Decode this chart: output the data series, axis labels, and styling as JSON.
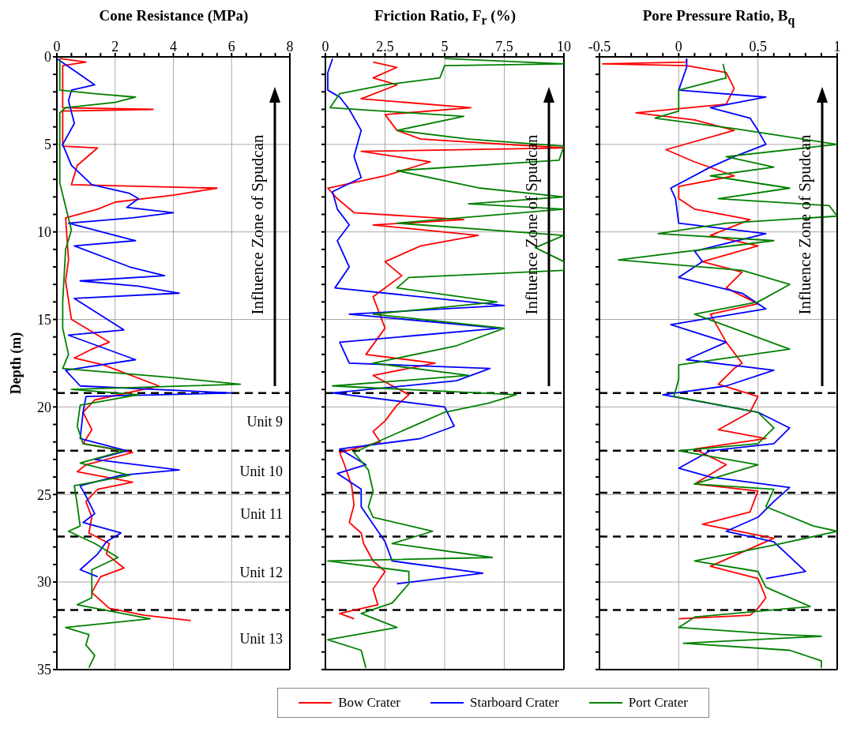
{
  "chart_data": [
    {
      "type": "line",
      "title": "Cone Resistance (MPa)",
      "ylabel": "Depth (m)",
      "grid": true,
      "xlim": [
        0,
        8
      ],
      "xticks": [
        0,
        {
          "value": 0.5,
          "label": null
        },
        {
          "value": 1,
          "label": null
        },
        {
          "value": 1.5,
          "label": null
        },
        2,
        {
          "value": 2.5,
          "label": null
        },
        {
          "value": 3,
          "label": null
        },
        {
          "value": 3.5,
          "label": null
        },
        4,
        {
          "value": 4.5,
          "label": null
        },
        {
          "value": 5,
          "label": null
        },
        {
          "value": 5.5,
          "label": null
        },
        6,
        {
          "value": 6.5,
          "label": null
        },
        {
          "value": 7,
          "label": null
        },
        {
          "value": 7.5,
          "label": null
        },
        8
      ],
      "ylim": [
        35,
        0
      ],
      "yticks": [
        0,
        {
          "value": 1,
          "label": null
        },
        {
          "value": 2,
          "label": null
        },
        {
          "value": 3,
          "label": null
        },
        {
          "value": 4,
          "label": null
        },
        5,
        {
          "value": 6,
          "label": null
        },
        {
          "value": 7,
          "label": null
        },
        {
          "value": 8,
          "label": null
        },
        {
          "value": 9,
          "label": null
        },
        10,
        {
          "value": 11,
          "label": null
        },
        {
          "value": 12,
          "label": null
        },
        {
          "value": 13,
          "label": null
        },
        {
          "value": 14,
          "label": null
        },
        15,
        {
          "value": 16,
          "label": null
        },
        {
          "value": 17,
          "label": null
        },
        {
          "value": 18,
          "label": null
        },
        {
          "value": 19,
          "label": null
        },
        20,
        {
          "value": 21,
          "label": null
        },
        {
          "value": 22,
          "label": null
        },
        {
          "value": 23,
          "label": null
        },
        {
          "value": 24,
          "label": null
        },
        25,
        {
          "value": 26,
          "label": null
        },
        {
          "value": 27,
          "label": null
        },
        {
          "value": 28,
          "label": null
        },
        {
          "value": 29,
          "label": null
        },
        30,
        {
          "value": 31,
          "label": null
        },
        {
          "value": 32,
          "label": null
        },
        {
          "value": 33,
          "label": null
        },
        {
          "value": 34,
          "label": null
        },
        35
      ],
      "series": [
        {
          "name": "Bow Crater",
          "color": "#ff0000",
          "x": [
            0.1,
            1.0,
            0.2,
            0.2,
            3.3,
            0.2,
            0.2,
            1.4,
            0.7,
            0.5,
            5.5,
            4.0,
            2.0,
            1.4,
            0.3,
            0.4,
            0.3,
            0.5,
            1.8,
            1.2,
            0.6,
            1.6,
            3.5,
            1.3,
            0.9,
            1.2,
            0.9,
            2.6,
            1.0,
            0.7,
            2.6,
            1.4,
            1.0,
            1.2,
            1.1,
            1.8,
            1.7,
            2.3,
            1.5,
            1.2,
            1.8,
            3.0,
            4.6
          ],
          "values": [
            0.1,
            0.3,
            0.5,
            2.9,
            3.0,
            3.1,
            5.1,
            5.2,
            6.2,
            7.3,
            7.5,
            7.9,
            8.3,
            8.7,
            9.2,
            11.6,
            12.8,
            15.0,
            16.3,
            16.7,
            17.2,
            17.6,
            18.8,
            19.6,
            20.3,
            21.3,
            22.1,
            22.6,
            23.3,
            23.7,
            24.3,
            24.7,
            25.4,
            26.3,
            27.2,
            27.8,
            28.4,
            29.2,
            29.7,
            30.6,
            31.5,
            31.9,
            32.2
          ]
        },
        {
          "name": "Starboard Crater",
          "color": "#0000ff",
          "x": [
            0.0,
            0.7,
            1.3,
            0.5,
            0.4,
            0.6,
            0.2,
            0.5,
            1.2,
            2.5,
            2.8,
            2.4,
            4.0,
            2.6,
            0.4,
            2.7,
            0.6,
            2.5,
            3.7,
            0.8,
            2.8,
            4.2,
            0.6,
            2.3,
            0.4,
            2.7,
            0.3,
            0.8,
            6.0,
            1.0,
            0.9,
            0.8,
            2.4,
            1.3,
            4.2,
            2.2,
            0.8,
            1.0,
            1.3,
            0.9,
            2.2,
            1.7,
            1.4,
            0.8,
            1.4
          ],
          "values": [
            0.1,
            0.9,
            1.6,
            1.9,
            2.5,
            3.8,
            5.0,
            6.2,
            7.3,
            7.8,
            8.1,
            8.6,
            8.9,
            9.2,
            9.5,
            10.5,
            10.8,
            12.0,
            12.5,
            12.8,
            13.1,
            13.5,
            13.8,
            15.6,
            15.9,
            17.3,
            17.9,
            18.8,
            19.2,
            19.4,
            20.3,
            21.8,
            22.5,
            23.0,
            23.6,
            23.9,
            24.5,
            25.1,
            26.1,
            26.6,
            27.2,
            27.7,
            28.4,
            29.3,
            29.7
          ]
        },
        {
          "name": "Port Crater",
          "color": "#008000",
          "x": [
            0.1,
            0.1,
            1.3,
            2.7,
            2.0,
            0.3,
            0.1,
            0.1,
            0.1,
            0.5,
            0.3,
            0.2,
            0.2,
            0.4,
            0.2,
            3.8,
            6.3,
            0.5,
            2.8,
            0.8,
            0.7,
            0.9,
            2.3,
            0.8,
            2.5,
            0.6,
            0.7,
            0.8,
            0.4,
            1.3,
            2.1,
            1.2,
            1.2,
            0.7,
            3.2,
            0.3,
            1.1,
            1.0,
            1.3,
            1.1
          ],
          "values": [
            0.1,
            1.9,
            2.1,
            2.3,
            2.6,
            2.9,
            3.2,
            5.7,
            7.2,
            9.9,
            11.0,
            14.0,
            15.5,
            17.0,
            17.8,
            18.3,
            18.7,
            19.0,
            19.3,
            19.9,
            21.1,
            22.1,
            22.5,
            23.2,
            23.9,
            24.5,
            25.6,
            26.8,
            27.1,
            27.8,
            28.6,
            29.3,
            30.9,
            31.3,
            32.1,
            32.6,
            33.0,
            33.6,
            34.2,
            34.9
          ]
        }
      ],
      "ref_lines": [
        {
          "axis": "y",
          "value": 19.2,
          "line_style": "dashed",
          "color": "#000000"
        },
        {
          "axis": "y",
          "value": 22.5,
          "line_style": "dashed",
          "color": "#000000"
        },
        {
          "axis": "y",
          "value": 24.9,
          "line_style": "dashed",
          "color": "#000000"
        },
        {
          "axis": "y",
          "value": 27.4,
          "line_style": "dashed",
          "color": "#000000"
        },
        {
          "axis": "y",
          "value": 31.6,
          "line_style": "dashed",
          "color": "#000000"
        }
      ],
      "legend": "bottom",
      "annotations": [
        "Influence Zone of Spudcan",
        "Unit 9",
        "Unit 10",
        "Unit 11",
        "Unit 12",
        "Unit 13"
      ]
    },
    {
      "type": "line",
      "title": "Friction Ratio, F$_{r}$ (%)",
      "grid": true,
      "tick_labels": "x",
      "legend": "bottom",
      "xlim": [
        0,
        10
      ],
      "xticks": [
        0,
        {
          "value": 0.5,
          "label": null
        },
        {
          "value": 1,
          "label": null
        },
        {
          "value": 1.5,
          "label": null
        },
        {
          "value": 2,
          "label": null
        },
        2.5,
        {
          "value": 3,
          "label": null
        },
        {
          "value": 3.5,
          "label": null
        },
        {
          "value": 4,
          "label": null
        },
        {
          "value": 4.5,
          "label": null
        },
        5,
        {
          "value": 5.5,
          "label": null
        },
        {
          "value": 6,
          "label": null
        },
        {
          "value": 6.5,
          "label": null
        },
        {
          "value": 7,
          "label": null
        },
        7.5,
        {
          "value": 8,
          "label": null
        },
        {
          "value": 8.5,
          "label": null
        },
        {
          "value": 9,
          "label": null
        },
        {
          "value": 9.5,
          "label": null
        },
        10
      ],
      "ylim": [
        35,
        0
      ],
      "yticks": [
        0,
        {
          "value": 1,
          "label": null
        },
        {
          "value": 2,
          "label": null
        },
        {
          "value": 3,
          "label": null
        },
        {
          "value": 4,
          "label": null
        },
        5,
        {
          "value": 6,
          "label": null
        },
        {
          "value": 7,
          "label": null
        },
        {
          "value": 8,
          "label": null
        },
        {
          "value": 9,
          "label": null
        },
        10,
        {
          "value": 11,
          "label": null
        },
        {
          "value": 12,
          "label": null
        },
        {
          "value": 13,
          "label": null
        },
        {
          "value": 14,
          "label": null
        },
        15,
        {
          "value": 16,
          "label": null
        },
        {
          "value": 17,
          "label": null
        },
        {
          "value": 18,
          "label": null
        },
        {
          "value": 19,
          "label": null
        },
        20,
        {
          "value": 21,
          "label": null
        },
        {
          "value": 22,
          "label": null
        },
        {
          "value": 23,
          "label": null
        },
        {
          "value": 24,
          "label": null
        },
        25,
        {
          "value": 26,
          "label": null
        },
        {
          "value": 27,
          "label": null
        },
        {
          "value": 28,
          "label": null
        },
        {
          "value": 29,
          "label": null
        },
        30,
        {
          "value": 31,
          "label": null
        },
        {
          "value": 32,
          "label": null
        },
        {
          "value": 33,
          "label": null
        },
        {
          "value": 34,
          "label": null
        },
        35
      ],
      "series": [
        {
          "name": "Bow Crater",
          "color": "#ff0000",
          "x": [
            2.0,
            3.0,
            2.0,
            3.0,
            1.5,
            6.1,
            2.5,
            3.0,
            4.0,
            10.0,
            1.5,
            4.4,
            2.5,
            0.1,
            0.5,
            1.2,
            5.8,
            2.0,
            6.4,
            4.0,
            2.5,
            3.2,
            2.0,
            2.5,
            1.7,
            4.6,
            2.0,
            3.5,
            3.0,
            2.5,
            2.0,
            2.3,
            0.6,
            0.8,
            1.1,
            1.2,
            1.0,
            1.5,
            1.6,
            2.0,
            2.5,
            2.0,
            2.2,
            0.6,
            1.2
          ],
          "values": [
            0.3,
            0.6,
            1.2,
            1.6,
            2.4,
            2.9,
            3.3,
            4.2,
            4.7,
            5.2,
            5.4,
            6.0,
            6.8,
            7.5,
            8.1,
            8.9,
            9.3,
            9.6,
            10.2,
            10.8,
            11.7,
            12.5,
            13.7,
            15.5,
            17.0,
            17.5,
            18.2,
            19.3,
            19.9,
            20.8,
            21.4,
            22.0,
            22.6,
            23.3,
            24.5,
            25.6,
            26.6,
            27.2,
            27.8,
            28.8,
            29.4,
            30.4,
            31.3,
            31.8,
            32.1
          ]
        },
        {
          "name": "Starboard Crater",
          "color": "#0000ff",
          "x": [
            0.3,
            0.1,
            0.1,
            0.6,
            1.0,
            1.5,
            1.2,
            1.5,
            0.3,
            0.5,
            1.0,
            0.5,
            1.0,
            0.4,
            7.5,
            1.0,
            7.3,
            0.6,
            1.0,
            6.9,
            5.5,
            0.3,
            5.0,
            5.4,
            4.0,
            0.6,
            1.7,
            0.5,
            1.5,
            1.5,
            2.1,
            2.5,
            2.8,
            6.6,
            3.0
          ],
          "values": [
            0.1,
            0.9,
            1.9,
            2.3,
            3.0,
            4.2,
            5.7,
            6.9,
            7.7,
            8.7,
            9.6,
            10.5,
            12.0,
            13.2,
            14.2,
            14.7,
            15.5,
            16.3,
            17.5,
            17.8,
            18.5,
            19.2,
            20.0,
            21.1,
            21.8,
            22.4,
            23.3,
            23.8,
            24.7,
            25.7,
            26.9,
            27.7,
            28.8,
            29.5,
            30.1
          ]
        },
        {
          "name": "Port Crater",
          "color": "#008000",
          "x": [
            5.0,
            10.0,
            5.0,
            4.8,
            2.5,
            0.6,
            0.2,
            5.8,
            3.0,
            6.0,
            10.0,
            9.8,
            3.0,
            6.5,
            10.0,
            6.0,
            10.0,
            3.0,
            10.0,
            8.8,
            10.0,
            10.0,
            3.5,
            3.0,
            7.2,
            2.0,
            7.5,
            5.5,
            2.0,
            6.0,
            0.3,
            8.0,
            6.8,
            5.0,
            4.0,
            2.5,
            1.2,
            1.8,
            2.0,
            1.8,
            2.0,
            4.5,
            2.8,
            7.0,
            0.1,
            3.5,
            3.5,
            2.8,
            1.5,
            3.0,
            0.1,
            1.5,
            1.7
          ],
          "values": [
            0.1,
            0.4,
            0.5,
            1.2,
            1.6,
            2.1,
            2.9,
            3.4,
            4.2,
            4.7,
            5.1,
            5.9,
            6.5,
            7.5,
            8.0,
            8.4,
            8.7,
            9.5,
            10.2,
            10.9,
            11.7,
            12.2,
            12.6,
            13.2,
            14.0,
            14.7,
            15.5,
            16.5,
            17.5,
            18.2,
            18.8,
            19.3,
            19.8,
            20.3,
            20.9,
            21.8,
            22.6,
            23.6,
            24.8,
            25.7,
            26.3,
            27.1,
            27.8,
            28.6,
            28.8,
            29.4,
            30.1,
            31.2,
            31.8,
            32.6,
            33.3,
            33.9,
            34.9
          ]
        }
      ],
      "ref_lines": [
        {
          "axis": "y",
          "value": 19.2,
          "line_style": "dashed",
          "color": "#000000"
        },
        {
          "axis": "y",
          "value": 22.5,
          "line_style": "dashed",
          "color": "#000000"
        },
        {
          "axis": "y",
          "value": 24.9,
          "line_style": "dashed",
          "color": "#000000"
        },
        {
          "axis": "y",
          "value": 27.4,
          "line_style": "dashed",
          "color": "#000000"
        },
        {
          "axis": "y",
          "value": 31.6,
          "line_style": "dashed",
          "color": "#000000"
        }
      ],
      "annotations": [
        "Influence Zone of Spudcan"
      ]
    },
    {
      "type": "line",
      "title": "Pore Pressure Ratio, B$_{q}$",
      "grid": true,
      "tick_labels": "x",
      "legend": "bottom",
      "xlim": [
        -0.5,
        1
      ],
      "xticks": [
        -0.5,
        {
          "value": -0.4,
          "label": null
        },
        {
          "value": -0.3,
          "label": null
        },
        {
          "value": -0.2,
          "label": null
        },
        {
          "value": -0.1,
          "label": null
        },
        0,
        {
          "value": 0.1,
          "label": null
        },
        {
          "value": 0.2,
          "label": null
        },
        {
          "value": 0.3,
          "label": null
        },
        {
          "value": 0.4,
          "label": null
        },
        0.5,
        {
          "value": 0.6,
          "label": null
        },
        {
          "value": 0.7,
          "label": null
        },
        {
          "value": 0.8,
          "label": null
        },
        {
          "value": 0.9,
          "label": null
        },
        1
      ],
      "ylim": [
        35,
        0
      ],
      "yticks": [
        0,
        {
          "value": 1,
          "label": null
        },
        {
          "value": 2,
          "label": null
        },
        {
          "value": 3,
          "label": null
        },
        {
          "value": 4,
          "label": null
        },
        5,
        {
          "value": 6,
          "label": null
        },
        {
          "value": 7,
          "label": null
        },
        {
          "value": 8,
          "label": null
        },
        {
          "value": 9,
          "label": null
        },
        10,
        {
          "value": 11,
          "label": null
        },
        {
          "value": 12,
          "label": null
        },
        {
          "value": 13,
          "label": null
        },
        {
          "value": 14,
          "label": null
        },
        15,
        {
          "value": 16,
          "label": null
        },
        {
          "value": 17,
          "label": null
        },
        {
          "value": 18,
          "label": null
        },
        {
          "value": 19,
          "label": null
        },
        20,
        {
          "value": 21,
          "label": null
        },
        {
          "value": 22,
          "label": null
        },
        {
          "value": 23,
          "label": null
        },
        {
          "value": 24,
          "label": null
        },
        25,
        {
          "value": 26,
          "label": null
        },
        {
          "value": 27,
          "label": null
        },
        {
          "value": 28,
          "label": null
        },
        {
          "value": 29,
          "label": null
        },
        30,
        {
          "value": 31,
          "label": null
        },
        {
          "value": 32,
          "label": null
        },
        {
          "value": 33,
          "label": null
        },
        {
          "value": 34,
          "label": null
        },
        35
      ],
      "series": [
        {
          "name": "Bow Crater",
          "color": "#ff0000",
          "x": [
            0.05,
            0.05,
            -0.48,
            0.05,
            0.3,
            0.35,
            0.3,
            -0.27,
            0.1,
            0.35,
            -0.08,
            0.1,
            0.35,
            0.0,
            0.0,
            0.1,
            0.45,
            0.2,
            0.5,
            0.15,
            0.4,
            0.3,
            0.5,
            0.2,
            0.3,
            0.4,
            0.35,
            0.25,
            0.5,
            0.45,
            0.25,
            0.55,
            0.1,
            0.3,
            0.1,
            0.5,
            0.45,
            0.15,
            0.6,
            0.2,
            0.5,
            0.55,
            0.5,
            0.45,
            0.0
          ],
          "values": [
            0.1,
            0.3,
            0.4,
            0.5,
            0.9,
            1.8,
            2.7,
            3.2,
            3.6,
            4.2,
            5.3,
            6.0,
            6.8,
            7.4,
            8.1,
            8.7,
            9.3,
            10.2,
            10.8,
            11.7,
            12.3,
            13.2,
            14.1,
            14.7,
            16.3,
            17.5,
            17.8,
            18.7,
            19.4,
            20.3,
            21.3,
            21.8,
            22.4,
            23.3,
            24.4,
            24.8,
            26.0,
            26.7,
            27.5,
            29.1,
            29.8,
            30.9,
            31.5,
            31.9,
            32.1
          ]
        },
        {
          "name": "Starboard Crater",
          "color": "#0000ff",
          "x": [
            0.05,
            0.05,
            0.0,
            0.55,
            0.2,
            0.45,
            0.5,
            0.55,
            0.35,
            0.2,
            -0.05,
            -0.02,
            0.0,
            0.55,
            0.1,
            0.15,
            0.0,
            0.4,
            0.55,
            -0.05,
            0.3,
            0.05,
            0.6,
            0.3,
            -0.1,
            0.5,
            0.7,
            0.6,
            0.2,
            0.0,
            0.2,
            0.7,
            0.6,
            0.5,
            0.3,
            0.6,
            0.8,
            0.55
          ],
          "values": [
            0.1,
            0.6,
            1.9,
            2.3,
            2.9,
            3.5,
            4.2,
            5.0,
            5.7,
            6.3,
            7.5,
            8.1,
            9.5,
            10.1,
            11.1,
            11.7,
            12.6,
            13.5,
            14.4,
            15.3,
            16.3,
            17.3,
            17.9,
            18.8,
            19.3,
            20.3,
            21.2,
            22.1,
            22.5,
            23.5,
            24.0,
            24.6,
            25.4,
            26.3,
            27.1,
            27.7,
            29.4,
            29.8
          ]
        },
        {
          "name": "Port Crater",
          "color": "#008000",
          "x": [
            0.28,
            0.3,
            0.0,
            0.0,
            -0.15,
            0.35,
            1.0,
            0.3,
            0.6,
            0.2,
            0.7,
            0.25,
            0.95,
            1.0,
            0.3,
            -0.13,
            0.6,
            -0.38,
            0.4,
            0.7,
            0.5,
            0.1,
            0.7,
            0.0,
            0.0,
            -0.03,
            0.5,
            0.6,
            0.5,
            0.0,
            0.5,
            0.1,
            0.6,
            0.55,
            0.85,
            1.0,
            0.6,
            0.1,
            0.5,
            0.55,
            0.83,
            0.1,
            0.0,
            0.65,
            0.9,
            0.03,
            0.7,
            0.9,
            0.9
          ],
          "values": [
            0.4,
            1.2,
            1.9,
            3.1,
            3.5,
            4.1,
            5.0,
            5.7,
            6.3,
            6.8,
            7.5,
            8.1,
            8.5,
            9.1,
            9.5,
            10.1,
            10.5,
            11.6,
            12.2,
            13.0,
            14.0,
            14.7,
            16.7,
            17.6,
            18.4,
            19.4,
            20.3,
            21.2,
            22.1,
            22.5,
            23.3,
            24.4,
            24.7,
            25.7,
            26.8,
            27.1,
            27.9,
            28.8,
            29.4,
            30.3,
            31.4,
            32.0,
            32.6,
            33.0,
            33.1,
            33.5,
            33.9,
            34.5,
            34.9
          ]
        }
      ],
      "ref_lines": [
        {
          "axis": "y",
          "value": 19.2,
          "line_style": "dashed",
          "color": "#000000"
        },
        {
          "axis": "y",
          "value": 22.5,
          "line_style": "dashed",
          "color": "#000000"
        },
        {
          "axis": "y",
          "value": 24.9,
          "line_style": "dashed",
          "color": "#000000"
        },
        {
          "axis": "y",
          "value": 27.4,
          "line_style": "dashed",
          "color": "#000000"
        },
        {
          "axis": "y",
          "value": 31.6,
          "line_style": "dashed",
          "color": "#000000"
        }
      ],
      "annotations": [
        "Influence Zone of Spudcan"
      ]
    }
  ]
}
